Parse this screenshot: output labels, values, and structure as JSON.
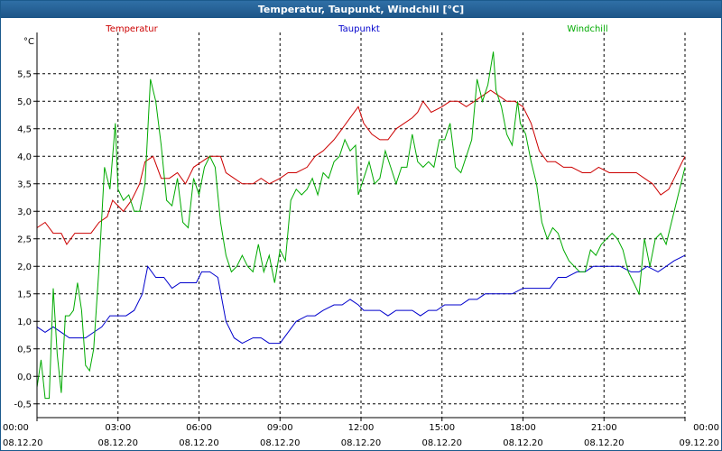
{
  "window": {
    "title": "Temperatur, Taupunkt, Windchill [°C]"
  },
  "chart_data": {
    "type": "line",
    "title": "Temperatur, Taupunkt, Windchill [°C]",
    "ylabel": "°C",
    "ylim": [
      -0.75,
      6.25
    ],
    "yticks": [
      "-0,5",
      "0,0",
      "0,5",
      "1,0",
      "1,5",
      "2,0",
      "2,5",
      "3,0",
      "3,5",
      "4,0",
      "4,5",
      "5,0",
      "5,5"
    ],
    "ytick_values": [
      -0.5,
      0.0,
      0.5,
      1.0,
      1.5,
      2.0,
      2.5,
      3.0,
      3.5,
      4.0,
      4.5,
      5.0,
      5.5
    ],
    "xlim": [
      0,
      24
    ],
    "xticks": [
      {
        "time": "00:00",
        "date": "08.12.20",
        "h": 0
      },
      {
        "time": "03:00",
        "date": "08.12.20",
        "h": 3
      },
      {
        "time": "06:00",
        "date": "08.12.20",
        "h": 6
      },
      {
        "time": "09:00",
        "date": "08.12.20",
        "h": 9
      },
      {
        "time": "12:00",
        "date": "08.12.20",
        "h": 12
      },
      {
        "time": "15:00",
        "date": "08.12.20",
        "h": 15
      },
      {
        "time": "18:00",
        "date": "08.12.20",
        "h": 18
      },
      {
        "time": "21:00",
        "date": "08.12.20",
        "h": 21
      },
      {
        "time": "00:00",
        "date": "09.12.20",
        "h": 24
      }
    ],
    "grid": true,
    "legend": "top",
    "series": [
      {
        "name": "Temperatur",
        "color": "#cc0000",
        "points": [
          [
            0,
            2.7
          ],
          [
            0.3,
            2.8
          ],
          [
            0.6,
            2.6
          ],
          [
            0.9,
            2.6
          ],
          [
            1.1,
            2.4
          ],
          [
            1.4,
            2.6
          ],
          [
            1.7,
            2.6
          ],
          [
            2.0,
            2.6
          ],
          [
            2.3,
            2.8
          ],
          [
            2.6,
            2.9
          ],
          [
            2.8,
            3.2
          ],
          [
            3.0,
            3.1
          ],
          [
            3.2,
            3.0
          ],
          [
            3.5,
            3.2
          ],
          [
            3.8,
            3.5
          ],
          [
            4.0,
            3.9
          ],
          [
            4.3,
            4.0
          ],
          [
            4.6,
            3.6
          ],
          [
            4.9,
            3.6
          ],
          [
            5.2,
            3.7
          ],
          [
            5.5,
            3.5
          ],
          [
            5.8,
            3.8
          ],
          [
            6.1,
            3.9
          ],
          [
            6.4,
            4.0
          ],
          [
            6.8,
            4.0
          ],
          [
            7.0,
            3.7
          ],
          [
            7.3,
            3.6
          ],
          [
            7.6,
            3.5
          ],
          [
            8.0,
            3.5
          ],
          [
            8.3,
            3.6
          ],
          [
            8.6,
            3.5
          ],
          [
            9.0,
            3.6
          ],
          [
            9.3,
            3.7
          ],
          [
            9.6,
            3.7
          ],
          [
            10.0,
            3.8
          ],
          [
            10.3,
            4.0
          ],
          [
            10.6,
            4.1
          ],
          [
            11.0,
            4.3
          ],
          [
            11.3,
            4.5
          ],
          [
            11.6,
            4.7
          ],
          [
            11.9,
            4.9
          ],
          [
            12.1,
            4.6
          ],
          [
            12.4,
            4.4
          ],
          [
            12.7,
            4.3
          ],
          [
            13.0,
            4.3
          ],
          [
            13.3,
            4.5
          ],
          [
            13.6,
            4.6
          ],
          [
            13.9,
            4.7
          ],
          [
            14.1,
            4.8
          ],
          [
            14.3,
            5.0
          ],
          [
            14.6,
            4.8
          ],
          [
            15.0,
            4.9
          ],
          [
            15.3,
            5.0
          ],
          [
            15.6,
            5.0
          ],
          [
            15.9,
            4.9
          ],
          [
            16.2,
            5.0
          ],
          [
            16.5,
            5.1
          ],
          [
            16.8,
            5.2
          ],
          [
            17.1,
            5.1
          ],
          [
            17.4,
            5.0
          ],
          [
            17.7,
            5.0
          ],
          [
            18.0,
            4.9
          ],
          [
            18.3,
            4.6
          ],
          [
            18.6,
            4.1
          ],
          [
            18.9,
            3.9
          ],
          [
            19.2,
            3.9
          ],
          [
            19.5,
            3.8
          ],
          [
            19.8,
            3.8
          ],
          [
            20.2,
            3.7
          ],
          [
            20.5,
            3.7
          ],
          [
            20.8,
            3.8
          ],
          [
            21.2,
            3.7
          ],
          [
            21.5,
            3.7
          ],
          [
            21.8,
            3.7
          ],
          [
            22.2,
            3.7
          ],
          [
            22.5,
            3.6
          ],
          [
            22.8,
            3.5
          ],
          [
            23.1,
            3.3
          ],
          [
            23.4,
            3.4
          ],
          [
            23.6,
            3.6
          ],
          [
            23.8,
            3.8
          ],
          [
            24.0,
            4.0
          ]
        ]
      },
      {
        "name": "Taupunkt",
        "color": "#0000cc",
        "points": [
          [
            0,
            0.9
          ],
          [
            0.3,
            0.8
          ],
          [
            0.6,
            0.9
          ],
          [
            0.9,
            0.8
          ],
          [
            1.2,
            0.7
          ],
          [
            1.5,
            0.7
          ],
          [
            1.8,
            0.7
          ],
          [
            2.1,
            0.8
          ],
          [
            2.4,
            0.9
          ],
          [
            2.7,
            1.1
          ],
          [
            3.0,
            1.1
          ],
          [
            3.3,
            1.1
          ],
          [
            3.6,
            1.2
          ],
          [
            3.9,
            1.5
          ],
          [
            4.1,
            2.0
          ],
          [
            4.4,
            1.8
          ],
          [
            4.7,
            1.8
          ],
          [
            5.0,
            1.6
          ],
          [
            5.3,
            1.7
          ],
          [
            5.6,
            1.7
          ],
          [
            5.9,
            1.7
          ],
          [
            6.1,
            1.9
          ],
          [
            6.4,
            1.9
          ],
          [
            6.7,
            1.8
          ],
          [
            7.0,
            1.0
          ],
          [
            7.3,
            0.7
          ],
          [
            7.6,
            0.6
          ],
          [
            8.0,
            0.7
          ],
          [
            8.3,
            0.7
          ],
          [
            8.6,
            0.6
          ],
          [
            9.0,
            0.6
          ],
          [
            9.3,
            0.8
          ],
          [
            9.6,
            1.0
          ],
          [
            10.0,
            1.1
          ],
          [
            10.3,
            1.1
          ],
          [
            10.6,
            1.2
          ],
          [
            11.0,
            1.3
          ],
          [
            11.3,
            1.3
          ],
          [
            11.6,
            1.4
          ],
          [
            11.9,
            1.3
          ],
          [
            12.1,
            1.2
          ],
          [
            12.4,
            1.2
          ],
          [
            12.7,
            1.2
          ],
          [
            13.0,
            1.1
          ],
          [
            13.3,
            1.2
          ],
          [
            13.6,
            1.2
          ],
          [
            13.9,
            1.2
          ],
          [
            14.2,
            1.1
          ],
          [
            14.5,
            1.2
          ],
          [
            14.8,
            1.2
          ],
          [
            15.1,
            1.3
          ],
          [
            15.4,
            1.3
          ],
          [
            15.7,
            1.3
          ],
          [
            16.0,
            1.4
          ],
          [
            16.3,
            1.4
          ],
          [
            16.6,
            1.5
          ],
          [
            17.0,
            1.5
          ],
          [
            17.3,
            1.5
          ],
          [
            17.6,
            1.5
          ],
          [
            18.0,
            1.6
          ],
          [
            18.3,
            1.6
          ],
          [
            18.6,
            1.6
          ],
          [
            19.0,
            1.6
          ],
          [
            19.3,
            1.8
          ],
          [
            19.6,
            1.8
          ],
          [
            20.0,
            1.9
          ],
          [
            20.3,
            1.9
          ],
          [
            20.6,
            2.0
          ],
          [
            21.0,
            2.0
          ],
          [
            21.3,
            2.0
          ],
          [
            21.6,
            2.0
          ],
          [
            22.0,
            1.9
          ],
          [
            22.3,
            1.9
          ],
          [
            22.6,
            2.0
          ],
          [
            23.0,
            1.9
          ],
          [
            23.3,
            2.0
          ],
          [
            23.6,
            2.1
          ],
          [
            24.0,
            2.2
          ]
        ]
      },
      {
        "name": "Windchill",
        "color": "#00aa00",
        "points": [
          [
            0,
            -0.2
          ],
          [
            0.15,
            0.3
          ],
          [
            0.3,
            -0.4
          ],
          [
            0.45,
            -0.4
          ],
          [
            0.6,
            1.6
          ],
          [
            0.75,
            0.4
          ],
          [
            0.9,
            -0.3
          ],
          [
            1.05,
            1.1
          ],
          [
            1.2,
            1.1
          ],
          [
            1.35,
            1.2
          ],
          [
            1.5,
            1.7
          ],
          [
            1.65,
            1.2
          ],
          [
            1.8,
            0.2
          ],
          [
            1.95,
            0.1
          ],
          [
            2.1,
            0.5
          ],
          [
            2.3,
            2.0
          ],
          [
            2.5,
            3.8
          ],
          [
            2.7,
            3.4
          ],
          [
            2.9,
            4.6
          ],
          [
            3.0,
            3.4
          ],
          [
            3.2,
            3.2
          ],
          [
            3.4,
            3.3
          ],
          [
            3.6,
            3.0
          ],
          [
            3.8,
            3.0
          ],
          [
            4.0,
            3.5
          ],
          [
            4.2,
            5.4
          ],
          [
            4.4,
            5.0
          ],
          [
            4.6,
            4.2
          ],
          [
            4.8,
            3.2
          ],
          [
            5.0,
            3.1
          ],
          [
            5.2,
            3.6
          ],
          [
            5.4,
            2.8
          ],
          [
            5.6,
            2.7
          ],
          [
            5.8,
            3.6
          ],
          [
            6.0,
            3.3
          ],
          [
            6.2,
            3.8
          ],
          [
            6.4,
            4.0
          ],
          [
            6.6,
            3.8
          ],
          [
            6.8,
            2.8
          ],
          [
            7.0,
            2.2
          ],
          [
            7.2,
            1.9
          ],
          [
            7.4,
            2.0
          ],
          [
            7.6,
            2.2
          ],
          [
            7.8,
            2.0
          ],
          [
            8.0,
            1.9
          ],
          [
            8.2,
            2.4
          ],
          [
            8.4,
            1.9
          ],
          [
            8.6,
            2.2
          ],
          [
            8.8,
            1.7
          ],
          [
            9.0,
            2.3
          ],
          [
            9.2,
            2.1
          ],
          [
            9.4,
            3.2
          ],
          [
            9.6,
            3.4
          ],
          [
            9.8,
            3.3
          ],
          [
            10.0,
            3.4
          ],
          [
            10.2,
            3.6
          ],
          [
            10.4,
            3.3
          ],
          [
            10.6,
            3.7
          ],
          [
            10.8,
            3.6
          ],
          [
            11.0,
            3.9
          ],
          [
            11.2,
            4.0
          ],
          [
            11.4,
            4.3
          ],
          [
            11.6,
            4.1
          ],
          [
            11.8,
            4.2
          ],
          [
            11.9,
            3.3
          ],
          [
            12.1,
            3.6
          ],
          [
            12.3,
            3.9
          ],
          [
            12.5,
            3.5
          ],
          [
            12.7,
            3.6
          ],
          [
            12.9,
            4.1
          ],
          [
            13.1,
            3.8
          ],
          [
            13.3,
            3.5
          ],
          [
            13.5,
            3.8
          ],
          [
            13.7,
            3.8
          ],
          [
            13.9,
            4.4
          ],
          [
            14.1,
            3.9
          ],
          [
            14.3,
            3.8
          ],
          [
            14.5,
            3.9
          ],
          [
            14.7,
            3.8
          ],
          [
            14.9,
            4.3
          ],
          [
            15.1,
            4.3
          ],
          [
            15.3,
            4.6
          ],
          [
            15.5,
            3.8
          ],
          [
            15.7,
            3.7
          ],
          [
            15.9,
            4.0
          ],
          [
            16.1,
            4.3
          ],
          [
            16.3,
            5.4
          ],
          [
            16.5,
            5.0
          ],
          [
            16.7,
            5.3
          ],
          [
            16.9,
            5.9
          ],
          [
            17.0,
            5.2
          ],
          [
            17.2,
            4.9
          ],
          [
            17.4,
            4.4
          ],
          [
            17.6,
            4.2
          ],
          [
            17.8,
            5.0
          ],
          [
            17.9,
            4.6
          ],
          [
            18.1,
            4.4
          ],
          [
            18.3,
            3.9
          ],
          [
            18.5,
            3.5
          ],
          [
            18.7,
            2.8
          ],
          [
            18.9,
            2.5
          ],
          [
            19.1,
            2.7
          ],
          [
            19.3,
            2.6
          ],
          [
            19.5,
            2.3
          ],
          [
            19.7,
            2.1
          ],
          [
            19.9,
            2.0
          ],
          [
            20.1,
            1.9
          ],
          [
            20.3,
            1.9
          ],
          [
            20.5,
            2.3
          ],
          [
            20.7,
            2.2
          ],
          [
            20.9,
            2.4
          ],
          [
            21.1,
            2.5
          ],
          [
            21.3,
            2.6
          ],
          [
            21.5,
            2.5
          ],
          [
            21.7,
            2.3
          ],
          [
            21.9,
            1.9
          ],
          [
            22.1,
            1.7
          ],
          [
            22.3,
            1.5
          ],
          [
            22.5,
            2.5
          ],
          [
            22.7,
            2.0
          ],
          [
            22.9,
            2.5
          ],
          [
            23.1,
            2.6
          ],
          [
            23.3,
            2.4
          ],
          [
            23.5,
            2.8
          ],
          [
            23.7,
            3.2
          ],
          [
            23.9,
            3.6
          ],
          [
            24.0,
            3.8
          ]
        ]
      }
    ]
  }
}
